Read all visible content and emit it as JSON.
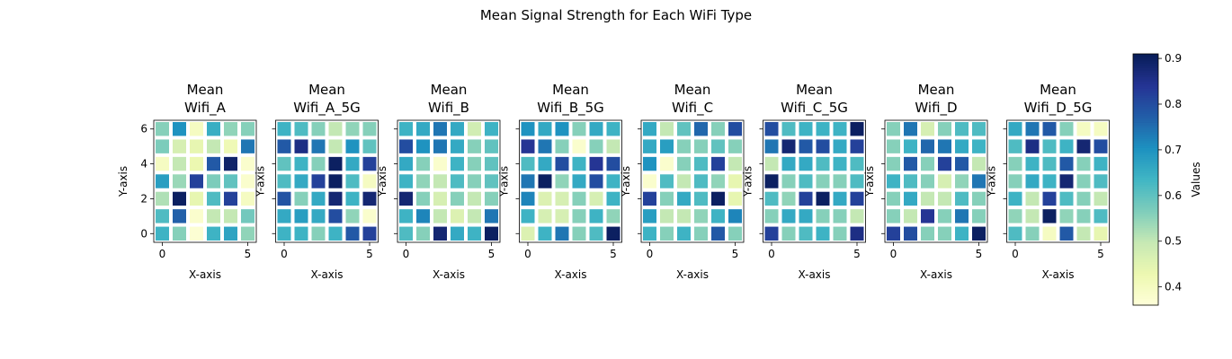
{
  "chart_data": {
    "type": "heatmap",
    "title": "Mean Signal Strength for Each WiFi Type",
    "xlabel": "X-axis",
    "ylabel": "Y-axis",
    "x_ticks": [
      "0",
      "5"
    ],
    "y_ticks": [
      "0",
      "2",
      "4",
      "6"
    ],
    "xlim": [
      -0.5,
      5.5
    ],
    "ylim": [
      -0.5,
      6.5
    ],
    "colormap": "YlGnBu",
    "colorbar": {
      "label": "Values",
      "min": 0.36,
      "max": 0.91,
      "ticks": [
        "0.4",
        "0.5",
        "0.6",
        "0.7",
        "0.8",
        "0.9"
      ],
      "tick_values": [
        0.4,
        0.5,
        0.6,
        0.7,
        0.8,
        0.9
      ]
    },
    "grid": "white cell separators",
    "panels": [
      {
        "title_line1": "Mean",
        "title_line2": "Wifi_A",
        "values": [
          [
            0.64,
            0.56,
            0.37,
            0.64,
            0.67,
            0.55
          ],
          [
            0.62,
            0.77,
            0.38,
            0.5,
            0.5,
            0.58
          ],
          [
            0.52,
            0.9,
            0.44,
            0.62,
            0.82,
            0.4
          ],
          [
            0.68,
            0.54,
            0.82,
            0.57,
            0.6,
            0.38
          ],
          [
            0.4,
            0.5,
            0.43,
            0.78,
            0.89,
            0.38
          ],
          [
            0.57,
            0.47,
            0.44,
            0.5,
            0.42,
            0.74
          ],
          [
            0.56,
            0.7,
            0.4,
            0.65,
            0.55,
            0.56
          ]
        ]
      },
      {
        "title_line1": "Mean",
        "title_line2": "Wifi_A_5G",
        "values": [
          [
            0.64,
            0.64,
            0.56,
            0.64,
            0.78,
            0.82
          ],
          [
            0.66,
            0.68,
            0.66,
            0.8,
            0.55,
            0.38
          ],
          [
            0.79,
            0.56,
            0.66,
            0.88,
            0.64,
            0.88
          ],
          [
            0.62,
            0.66,
            0.82,
            0.9,
            0.62,
            0.4
          ],
          [
            0.6,
            0.64,
            0.56,
            0.9,
            0.66,
            0.82
          ],
          [
            0.78,
            0.86,
            0.74,
            0.5,
            0.7,
            0.6
          ],
          [
            0.64,
            0.62,
            0.56,
            0.5,
            0.55,
            0.56
          ]
        ]
      },
      {
        "title_line1": "Mean",
        "title_line2": "Wifi_B",
        "values": [
          [
            0.62,
            0.56,
            0.88,
            0.66,
            0.64,
            0.9
          ],
          [
            0.64,
            0.72,
            0.5,
            0.46,
            0.5,
            0.74
          ],
          [
            0.88,
            0.56,
            0.47,
            0.56,
            0.5,
            0.56
          ],
          [
            0.64,
            0.55,
            0.5,
            0.62,
            0.56,
            0.6
          ],
          [
            0.66,
            0.56,
            0.38,
            0.64,
            0.56,
            0.6
          ],
          [
            0.8,
            0.7,
            0.74,
            0.66,
            0.56,
            0.6
          ],
          [
            0.64,
            0.66,
            0.74,
            0.66,
            0.48,
            0.64
          ]
        ]
      },
      {
        "title_line1": "Mean",
        "title_line2": "Wifi_B_5G",
        "values": [
          [
            0.46,
            0.64,
            0.74,
            0.56,
            0.62,
            0.9
          ],
          [
            0.64,
            0.47,
            0.47,
            0.56,
            0.64,
            0.55
          ],
          [
            0.72,
            0.46,
            0.47,
            0.56,
            0.47,
            0.64
          ],
          [
            0.74,
            0.9,
            0.55,
            0.66,
            0.8,
            0.64
          ],
          [
            0.62,
            0.66,
            0.8,
            0.64,
            0.84,
            0.8
          ],
          [
            0.84,
            0.74,
            0.56,
            0.38,
            0.56,
            0.5
          ],
          [
            0.7,
            0.66,
            0.7,
            0.56,
            0.66,
            0.64
          ]
        ]
      },
      {
        "title_line1": "Mean",
        "title_line2": "Wifi_C",
        "values": [
          [
            0.64,
            0.56,
            0.64,
            0.56,
            0.78,
            0.56
          ],
          [
            0.68,
            0.5,
            0.5,
            0.55,
            0.64,
            0.72
          ],
          [
            0.82,
            0.56,
            0.66,
            0.62,
            0.9,
            0.44
          ],
          [
            0.38,
            0.62,
            0.5,
            0.62,
            0.55,
            0.44
          ],
          [
            0.7,
            0.38,
            0.56,
            0.62,
            0.82,
            0.5
          ],
          [
            0.66,
            0.68,
            0.56,
            0.56,
            0.6,
            0.56
          ],
          [
            0.66,
            0.5,
            0.6,
            0.76,
            0.56,
            0.8
          ]
        ]
      },
      {
        "title_line1": "Mean",
        "title_line2": "Wifi_C_5G",
        "values": [
          [
            0.82,
            0.56,
            0.62,
            0.64,
            0.56,
            0.86
          ],
          [
            0.56,
            0.66,
            0.66,
            0.56,
            0.56,
            0.5
          ],
          [
            0.62,
            0.55,
            0.82,
            0.9,
            0.66,
            0.82
          ],
          [
            0.9,
            0.56,
            0.62,
            0.56,
            0.56,
            0.62
          ],
          [
            0.5,
            0.66,
            0.66,
            0.62,
            0.64,
            0.62
          ],
          [
            0.74,
            0.88,
            0.78,
            0.8,
            0.66,
            0.82
          ],
          [
            0.8,
            0.62,
            0.64,
            0.64,
            0.64,
            0.9
          ]
        ]
      },
      {
        "title_line1": "Mean",
        "title_line2": "Wifi_D",
        "values": [
          [
            0.82,
            0.8,
            0.56,
            0.56,
            0.64,
            0.9
          ],
          [
            0.56,
            0.5,
            0.84,
            0.56,
            0.74,
            0.56
          ],
          [
            0.56,
            0.66,
            0.5,
            0.5,
            0.62,
            0.56
          ],
          [
            0.64,
            0.62,
            0.56,
            0.47,
            0.55,
            0.74
          ],
          [
            0.56,
            0.78,
            0.56,
            0.82,
            0.78,
            0.5
          ],
          [
            0.56,
            0.64,
            0.76,
            0.74,
            0.66,
            0.64
          ],
          [
            0.56,
            0.74,
            0.47,
            0.56,
            0.62,
            0.62
          ]
        ]
      },
      {
        "title_line1": "Mean",
        "title_line2": "Wifi_D_5G",
        "values": [
          [
            0.62,
            0.56,
            0.4,
            0.78,
            0.5,
            0.44
          ],
          [
            0.55,
            0.5,
            0.9,
            0.55,
            0.56,
            0.62
          ],
          [
            0.64,
            0.5,
            0.82,
            0.62,
            0.56,
            0.5
          ],
          [
            0.56,
            0.66,
            0.64,
            0.88,
            0.56,
            0.62
          ],
          [
            0.56,
            0.64,
            0.62,
            0.78,
            0.56,
            0.64
          ],
          [
            0.62,
            0.86,
            0.62,
            0.64,
            0.88,
            0.8
          ],
          [
            0.66,
            0.74,
            0.78,
            0.56,
            0.4,
            0.4
          ]
        ]
      }
    ]
  }
}
